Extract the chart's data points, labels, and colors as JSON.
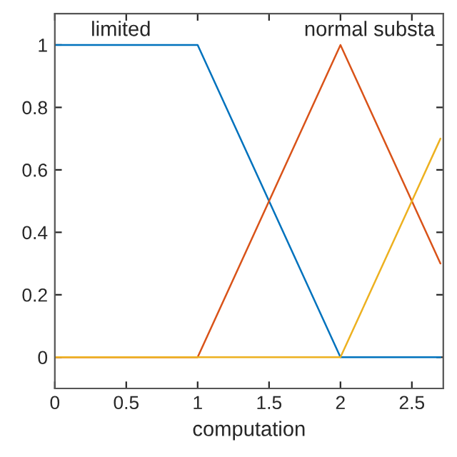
{
  "chart_data": {
    "type": "line",
    "xlabel": "computation",
    "x": [
      0,
      1,
      2,
      2.7
    ],
    "series": [
      {
        "color": "#0072bd",
        "values": [
          1,
          1,
          0,
          0
        ]
      },
      {
        "color": "#d95319",
        "values": [
          0,
          0,
          1,
          0.3
        ]
      },
      {
        "color": "#edb120",
        "values": [
          0,
          0,
          0,
          0.7
        ]
      }
    ],
    "annotations": [
      "limited",
      "normal substa"
    ],
    "xlim": [
      0,
      2.72
    ],
    "ylim": [
      -0.1,
      1.1
    ],
    "xticks": [
      0,
      0.5,
      1,
      1.5,
      2,
      2.5
    ],
    "yticks": [
      0,
      0.2,
      0.4,
      0.6,
      0.8,
      1
    ],
    "grid": false,
    "line_style": "solid",
    "marker": "none"
  }
}
